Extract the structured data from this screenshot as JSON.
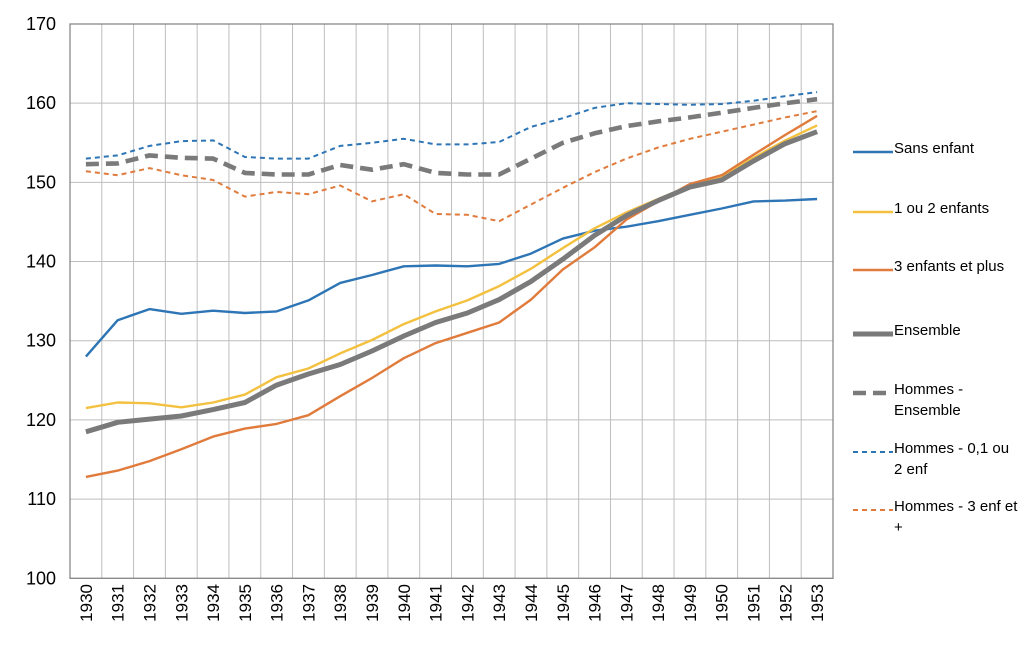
{
  "chart_data": {
    "type": "line",
    "x": [
      1930,
      1931,
      1932,
      1933,
      1934,
      1935,
      1936,
      1937,
      1938,
      1939,
      1940,
      1941,
      1942,
      1943,
      1944,
      1945,
      1946,
      1947,
      1948,
      1949,
      1950,
      1951,
      1952,
      1953
    ],
    "series": [
      {
        "name": "Sans enfant",
        "color": "#2E75B6",
        "style": "solid",
        "width": 2.4,
        "values": [
          128.0,
          132.6,
          134.0,
          133.4,
          133.8,
          133.5,
          133.7,
          135.1,
          137.3,
          138.3,
          139.4,
          139.5,
          139.4,
          139.7,
          141.0,
          142.9,
          143.9,
          144.4,
          145.1,
          145.9,
          146.7,
          147.6,
          147.7,
          147.9
        ]
      },
      {
        "name": "1 ou 2 enfants",
        "color": "#F3C13F",
        "style": "solid",
        "width": 2.4,
        "values": [
          121.5,
          122.2,
          122.1,
          121.6,
          122.2,
          123.2,
          125.4,
          126.5,
          128.4,
          130.1,
          132.1,
          133.7,
          135.1,
          136.9,
          139.1,
          141.7,
          144.2,
          146.2,
          147.9,
          149.5,
          150.6,
          153.1,
          155.3,
          157.2
        ]
      },
      {
        "name": "3 enfants et plus",
        "color": "#E07B3C",
        "style": "solid",
        "width": 2.4,
        "values": [
          112.8,
          113.6,
          114.8,
          116.3,
          117.9,
          118.9,
          119.5,
          120.6,
          123.0,
          125.3,
          127.8,
          129.7,
          131.0,
          132.3,
          135.2,
          139.0,
          141.8,
          145.3,
          147.6,
          149.8,
          150.9,
          153.5,
          156.0,
          158.4
        ]
      },
      {
        "name": "Ensemble",
        "color": "#7A7A7A",
        "style": "solid",
        "width": 5,
        "values": [
          118.5,
          119.7,
          120.1,
          120.5,
          121.3,
          122.2,
          124.4,
          125.8,
          127.0,
          128.7,
          130.6,
          132.3,
          133.5,
          135.2,
          137.5,
          140.3,
          143.3,
          145.8,
          147.7,
          149.4,
          150.3,
          152.7,
          154.9,
          156.4
        ]
      },
      {
        "name": "Hommes - Ensemble",
        "color": "#7A7A7A",
        "style": "dashed-long",
        "width": 4.6,
        "values": [
          152.3,
          152.4,
          153.4,
          153.1,
          153.0,
          151.2,
          151.0,
          151.0,
          152.2,
          151.6,
          152.3,
          151.2,
          151.0,
          151.0,
          153.0,
          155.0,
          156.2,
          157.1,
          157.7,
          158.2,
          158.8,
          159.4,
          160.0,
          160.5
        ]
      },
      {
        "name": "Hommes - 0,1 ou 2 enf",
        "color": "#2E75B6",
        "style": "dashed",
        "width": 2,
        "values": [
          153.0,
          153.4,
          154.6,
          155.2,
          155.3,
          153.2,
          153.0,
          153.0,
          154.6,
          155.0,
          155.5,
          154.8,
          154.8,
          155.1,
          157.0,
          158.1,
          159.4,
          160.0,
          159.9,
          159.8,
          159.9,
          160.3,
          160.9,
          161.4
        ]
      },
      {
        "name": "Hommes - 3 enf et +",
        "color": "#E07B3C",
        "style": "dashed",
        "width": 2,
        "values": [
          151.4,
          150.9,
          151.8,
          150.9,
          150.3,
          148.2,
          148.8,
          148.5,
          149.6,
          147.6,
          148.5,
          146.0,
          145.9,
          145.1,
          147.2,
          149.3,
          151.3,
          153.0,
          154.4,
          155.5,
          156.4,
          157.3,
          158.2,
          159.0
        ]
      }
    ],
    "title": "",
    "xlabel": "",
    "ylabel": "",
    "ylim": [
      100,
      170
    ],
    "ytick_step": 10,
    "grid": true,
    "legend_position": "right",
    "colors": {
      "gridline": "#BEBEBE",
      "plot_border": "#808080",
      "tick_label": "#000000"
    }
  },
  "legend_layout": {
    "item_tops": [
      138,
      198,
      256,
      320,
      379,
      438,
      496
    ]
  }
}
